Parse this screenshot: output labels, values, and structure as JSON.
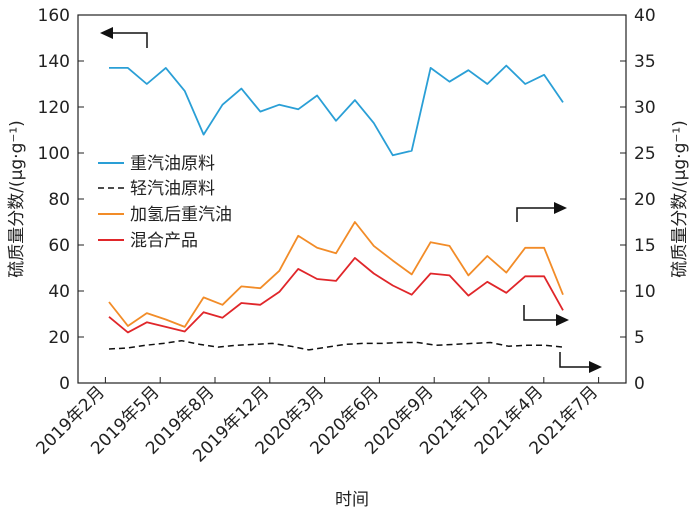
{
  "chart_data": {
    "type": "line",
    "title": "",
    "xlabel": "时间",
    "ylabel_left": "硫质量分数/(μg·g⁻¹)",
    "ylabel_right": "硫质量分数/(μg·g⁻¹)",
    "ylim_left": [
      0,
      160
    ],
    "ylim_right": [
      0,
      40
    ],
    "yticks_left": [
      0,
      20,
      40,
      60,
      80,
      100,
      120,
      140,
      160
    ],
    "yticks_right": [
      0,
      5,
      10,
      15,
      20,
      25,
      30,
      35,
      40
    ],
    "x_tick_labels": [
      "2019年2月",
      "2019年5月",
      "2019年8月",
      "2019年12月",
      "2020年3月",
      "2020年6月",
      "2020年9月",
      "2021年1月",
      "2021年4月",
      "2021年7月"
    ],
    "grid": false,
    "legend_position": "left-middle",
    "series": [
      {
        "name": "重汽油原料",
        "axis": "left",
        "color": "#2a9fd6",
        "dash": "",
        "values": [
          137,
          137,
          130,
          137,
          127,
          108,
          121,
          128,
          118,
          121,
          119,
          125,
          114,
          123,
          113,
          99,
          101,
          137,
          131,
          136,
          130,
          138,
          130,
          134,
          122
        ]
      },
      {
        "name": "轻汽油原料",
        "axis": "right",
        "color": "#111111",
        "dash": "6,4",
        "values": [
          3.7,
          3.8,
          4.1,
          4.3,
          4.6,
          4.2,
          3.9,
          4.1,
          4.2,
          4.3,
          4.0,
          3.6,
          3.9,
          4.2,
          4.3,
          4.3,
          4.4,
          4.4,
          4.1,
          4.2,
          4.3,
          4.4,
          4.0,
          4.1,
          4.1,
          3.9
        ]
      },
      {
        "name": "加氢后重汽油",
        "axis": "right",
        "color": "#f28c28",
        "dash": "",
        "values": [
          8.8,
          6.2,
          7.6,
          6.9,
          6.1,
          9.3,
          8.5,
          10.5,
          10.3,
          12.2,
          16.0,
          14.7,
          14.1,
          17.5,
          14.9,
          13.3,
          11.8,
          15.3,
          14.9,
          11.7,
          13.8,
          12.0,
          14.7,
          14.7,
          9.6
        ]
      },
      {
        "name": "混合产品",
        "axis": "right",
        "color": "#e0262a",
        "dash": "",
        "values": [
          7.2,
          5.5,
          6.6,
          6.1,
          5.6,
          7.7,
          7.1,
          8.7,
          8.5,
          9.9,
          12.4,
          11.3,
          11.1,
          13.6,
          11.9,
          10.6,
          9.6,
          11.9,
          11.7,
          9.5,
          11.0,
          9.8,
          11.6,
          11.6,
          7.9
        ]
      }
    ],
    "annotations": [
      {
        "type": "arrow",
        "target": "left-axis",
        "series": "重汽油原料"
      },
      {
        "type": "arrow",
        "target": "right-axis",
        "series": "加氢后重汽油"
      },
      {
        "type": "arrow",
        "target": "right-axis",
        "series": "混合产品"
      },
      {
        "type": "arrow",
        "target": "right-axis",
        "series": "轻汽油原料"
      }
    ]
  }
}
